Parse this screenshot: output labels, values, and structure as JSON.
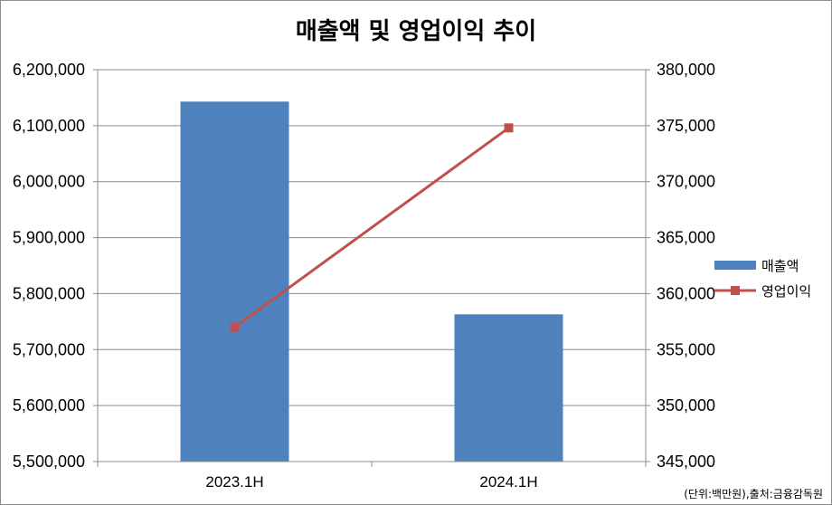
{
  "chart_data": {
    "type": "bar+line",
    "title": "매출액 및 영업이익 추이",
    "categories": [
      "2023.1H",
      "2024.1H"
    ],
    "series": [
      {
        "name": "매출액",
        "type": "bar",
        "axis": "left",
        "color": "#4F81BD",
        "values": [
          6143000,
          5763000
        ]
      },
      {
        "name": "영업이익",
        "type": "line",
        "axis": "right",
        "color": "#C0504D",
        "marker": "square",
        "values": [
          357000,
          374800
        ]
      }
    ],
    "y_left": {
      "min": 5500000,
      "max": 6200000,
      "ticks": [
        "5,500,000",
        "5,600,000",
        "5,700,000",
        "5,800,000",
        "5,900,000",
        "6,000,000",
        "6,100,000",
        "6,200,000"
      ]
    },
    "y_right": {
      "min": 345000,
      "max": 380000,
      "ticks": [
        "345,000",
        "350,000",
        "355,000",
        "360,000",
        "365,000",
        "370,000",
        "375,000",
        "380,000"
      ]
    },
    "grid": true,
    "legend_position": "right",
    "source_note": "(단위:백만원),출처:금융감독원"
  }
}
